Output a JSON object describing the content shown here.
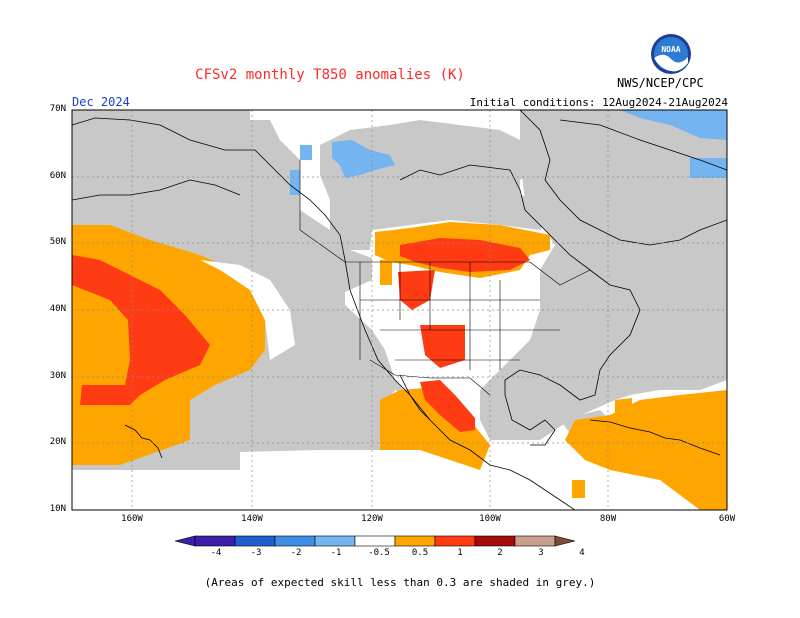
{
  "header": {
    "title": "CFSv2 monthly T850 anomalies (K)",
    "month": "Dec 2024",
    "initial_conditions": "Initial conditions: 12Aug2024-21Aug2024",
    "agency": "NWS/NCEP/CPC",
    "logo_text": "NOAA"
  },
  "map": {
    "lat_labels": [
      "70N",
      "60N",
      "50N",
      "40N",
      "30N",
      "20N",
      "10N"
    ],
    "lon_labels": [
      "160W",
      "140W",
      "120W",
      "100W",
      "80W",
      "60W"
    ],
    "extent": {
      "lon": [
        -170,
        -60
      ],
      "lat": [
        10,
        70
      ]
    }
  },
  "colorbar": {
    "labels": [
      "-4",
      "-3",
      "-2",
      "-1",
      "-0.5",
      "0.5",
      "1",
      "2",
      "3",
      "4"
    ],
    "colors": [
      "#3b1fa8",
      "#1e5fcc",
      "#3d8fe6",
      "#74b4f0",
      "#ffffff",
      "#ffa500",
      "#ff3b14",
      "#a50a0a",
      "#c9a090",
      "#7a4a3c"
    ]
  },
  "legend": {
    "grey_color": "#c8c8c8",
    "footnote": "(Areas of expected skill less than 0.3 are shaded in grey.)"
  }
}
